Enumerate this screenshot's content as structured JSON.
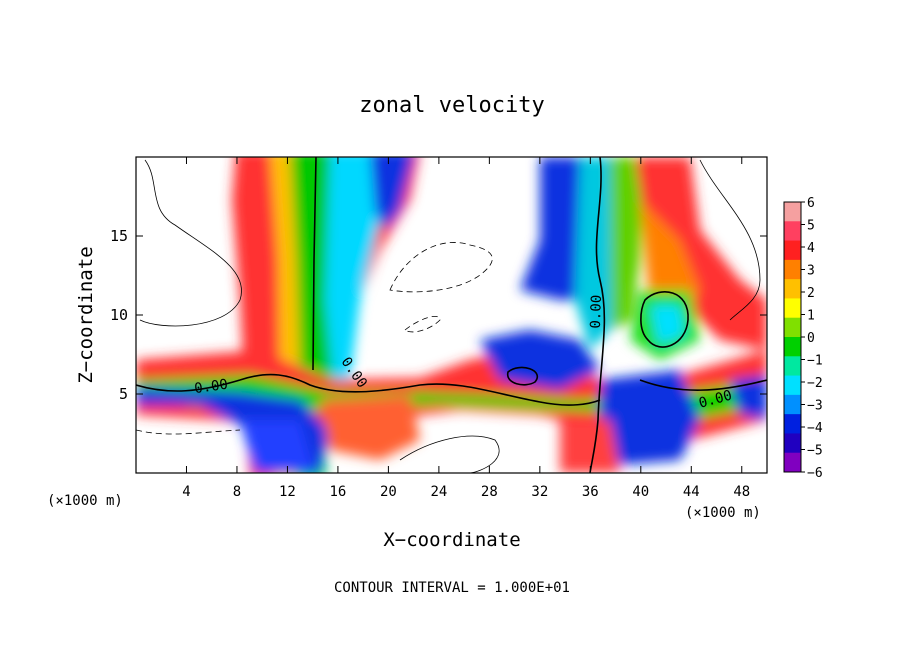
{
  "chart_data": {
    "type": "heatmap",
    "title": "zonal velocity",
    "xlabel": "X−coordinate",
    "ylabel": "Z−coordinate",
    "x_unit_left": "(×1000 m)",
    "x_unit_right": "(×1000 m)",
    "footer": "CONTOUR INTERVAL = 1.000E+01",
    "xlim": [
      0,
      50
    ],
    "ylim": [
      0,
      20
    ],
    "x_ticks": [
      4,
      8,
      12,
      16,
      20,
      24,
      28,
      32,
      36,
      40,
      44,
      48
    ],
    "y_ticks": [
      5,
      10,
      15
    ],
    "colorbar": {
      "levels": [
        6,
        5,
        4,
        3,
        2,
        1,
        0,
        -1,
        -2,
        -3,
        -4,
        -5,
        -6
      ],
      "labels": [
        "6",
        "5",
        "4",
        "3",
        "2",
        "1",
        "0",
        "−1",
        "−2",
        "−3",
        "−4",
        "−5",
        "−6"
      ],
      "colors": [
        "#f5a0a0",
        "#ff4060",
        "#ff2020",
        "#ff8000",
        "#ffc000",
        "#ffff00",
        "#80e000",
        "#00d000",
        "#00e8a0",
        "#00e0ff",
        "#0090ff",
        "#0020e0",
        "#2000c0",
        "#8000c0"
      ]
    },
    "contour_labels": [
      {
        "text": "0.00",
        "x": 6,
        "y": 5.2
      },
      {
        "text": "0.00",
        "x": 17,
        "y": 6.2
      },
      {
        "text": "0.00",
        "x": 36.8,
        "y": 10.2
      },
      {
        "text": "0.00",
        "x": 46,
        "y": 4.4
      }
    ],
    "contour_label_rotations": [
      -8,
      55,
      -88,
      -15
    ]
  }
}
